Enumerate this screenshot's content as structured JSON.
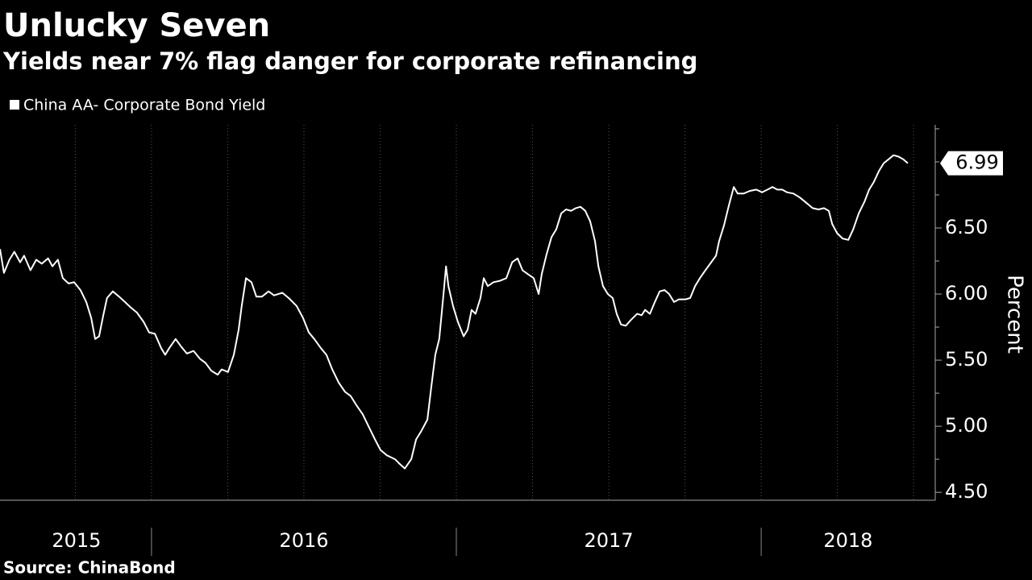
{
  "chart_data": {
    "type": "line",
    "title": "Unlucky Seven",
    "subtitle": "Yields near 7% flag danger for corporate refinancing",
    "y_label": "Percent",
    "source": "Source: ChinaBond",
    "xlim": [
      2015.503,
      2018.571
    ],
    "ylim": [
      4.44,
      7.28
    ],
    "yticks": [
      {
        "value": 4.5,
        "label": "4.50"
      },
      {
        "value": 5.0,
        "label": "5.00"
      },
      {
        "value": 5.5,
        "label": "5.50"
      },
      {
        "value": 6.0,
        "label": "6.00"
      },
      {
        "value": 6.5,
        "label": "6.50"
      }
    ],
    "minor_yticks": [
      4.75,
      5.25,
      5.75,
      6.25,
      6.75,
      7.0,
      7.25
    ],
    "xticks": [
      2016,
      2017,
      2018
    ],
    "xgrid": [
      2015.75,
      2016.25,
      2016.5,
      2016.75,
      2017.25,
      2017.5,
      2017.75,
      2018.25,
      2018.5
    ],
    "xlabels": [
      {
        "value": 2015.754,
        "label": "2015"
      },
      {
        "value": 2016.5,
        "label": "2016"
      },
      {
        "value": 2017.5,
        "label": "2017"
      },
      {
        "value": 2018.285,
        "label": "2018"
      }
    ],
    "grid": true,
    "series": [
      {
        "name": "China AA- Corporate Bond Yield",
        "color": "#ffffff",
        "x": [
          2015.503,
          2015.516,
          2015.534,
          2015.55,
          2015.569,
          2015.582,
          2015.603,
          2015.622,
          2015.64,
          2015.661,
          2015.675,
          2015.693,
          2015.709,
          2015.728,
          2015.746,
          2015.767,
          2015.786,
          2015.802,
          2015.815,
          2015.828,
          2015.841,
          2015.854,
          2015.873,
          2015.894,
          2015.913,
          2015.931,
          2015.952,
          2015.974,
          2015.992,
          2016.011,
          2016.032,
          2016.045,
          2016.058,
          2016.079,
          2016.098,
          2016.116,
          2016.138,
          2016.159,
          2016.177,
          2016.196,
          2016.217,
          2016.23,
          2016.251,
          2016.27,
          2016.286,
          2016.296,
          2016.31,
          2016.328,
          2016.344,
          2016.362,
          2016.384,
          2016.402,
          2016.429,
          2016.45,
          2016.476,
          2016.497,
          2016.516,
          2016.534,
          2016.556,
          2016.574,
          2016.593,
          2016.614,
          2016.635,
          2016.653,
          2016.672,
          2016.693,
          2016.714,
          2016.733,
          2016.751,
          2016.772,
          2016.799,
          2016.812,
          2016.831,
          2016.852,
          2016.868,
          2016.884,
          2016.905,
          2016.918,
          2016.931,
          2016.944,
          2016.958,
          2016.966,
          2016.974,
          2016.989,
          2017.005,
          2017.024,
          2017.037,
          2017.05,
          2017.063,
          2017.079,
          2017.09,
          2017.103,
          2017.122,
          2017.143,
          2017.164,
          2017.183,
          2017.201,
          2017.217,
          2017.235,
          2017.254,
          2017.27,
          2017.28,
          2017.296,
          2017.312,
          2017.328,
          2017.344,
          2017.36,
          2017.376,
          2017.392,
          2017.407,
          2017.423,
          2017.439,
          2017.455,
          2017.466,
          2017.481,
          2017.497,
          2017.513,
          2017.526,
          2017.54,
          2017.556,
          2017.571,
          2017.593,
          2017.608,
          2017.619,
          2017.635,
          2017.651,
          2017.667,
          2017.683,
          2017.698,
          2017.714,
          2017.73,
          2017.751,
          2017.767,
          2017.783,
          2017.799,
          2017.817,
          2017.836,
          2017.852,
          2017.862,
          2017.878,
          2017.894,
          2017.91,
          2017.923,
          2017.942,
          2017.963,
          2017.984,
          2018.003,
          2018.021,
          2018.037,
          2018.053,
          2018.069,
          2018.085,
          2018.106,
          2018.127,
          2018.148,
          2018.169,
          2018.188,
          2018.206,
          2018.222,
          2018.233,
          2018.249,
          2018.267,
          2018.286,
          2018.302,
          2018.32,
          2018.339,
          2018.354,
          2018.37,
          2018.386,
          2018.402,
          2018.418,
          2018.434,
          2018.45,
          2018.466,
          2018.481
        ],
        "values": [
          6.34,
          6.16,
          6.26,
          6.32,
          6.24,
          6.29,
          6.18,
          6.26,
          6.23,
          6.27,
          6.21,
          6.26,
          6.12,
          6.08,
          6.09,
          6.03,
          5.94,
          5.82,
          5.66,
          5.68,
          5.83,
          5.97,
          6.02,
          5.98,
          5.94,
          5.9,
          5.86,
          5.79,
          5.71,
          5.7,
          5.59,
          5.54,
          5.59,
          5.66,
          5.6,
          5.55,
          5.57,
          5.51,
          5.48,
          5.42,
          5.39,
          5.43,
          5.41,
          5.54,
          5.73,
          5.91,
          6.12,
          6.09,
          5.98,
          5.98,
          6.02,
          5.99,
          6.01,
          5.97,
          5.91,
          5.82,
          5.71,
          5.66,
          5.59,
          5.54,
          5.43,
          5.33,
          5.26,
          5.23,
          5.16,
          5.09,
          4.99,
          4.9,
          4.82,
          4.78,
          4.75,
          4.72,
          4.68,
          4.75,
          4.9,
          4.96,
          5.05,
          5.3,
          5.54,
          5.66,
          6.0,
          6.21,
          6.06,
          5.91,
          5.79,
          5.68,
          5.73,
          5.88,
          5.85,
          5.97,
          6.12,
          6.06,
          6.09,
          6.1,
          6.12,
          6.24,
          6.27,
          6.18,
          6.15,
          6.12,
          6.0,
          6.15,
          6.3,
          6.43,
          6.49,
          6.61,
          6.64,
          6.63,
          6.65,
          6.66,
          6.63,
          6.55,
          6.4,
          6.21,
          6.06,
          6.0,
          5.97,
          5.85,
          5.77,
          5.76,
          5.8,
          5.85,
          5.84,
          5.88,
          5.85,
          5.94,
          6.02,
          6.03,
          6.0,
          5.94,
          5.96,
          5.96,
          5.97,
          6.06,
          6.12,
          6.18,
          6.24,
          6.29,
          6.4,
          6.52,
          6.67,
          6.81,
          6.76,
          6.76,
          6.78,
          6.79,
          6.77,
          6.79,
          6.81,
          6.79,
          6.79,
          6.77,
          6.76,
          6.73,
          6.69,
          6.65,
          6.64,
          6.65,
          6.63,
          6.53,
          6.46,
          6.42,
          6.41,
          6.49,
          6.61,
          6.7,
          6.79,
          6.85,
          6.93,
          6.99,
          7.02,
          7.05,
          7.04,
          7.02,
          6.99
        ]
      }
    ]
  }
}
